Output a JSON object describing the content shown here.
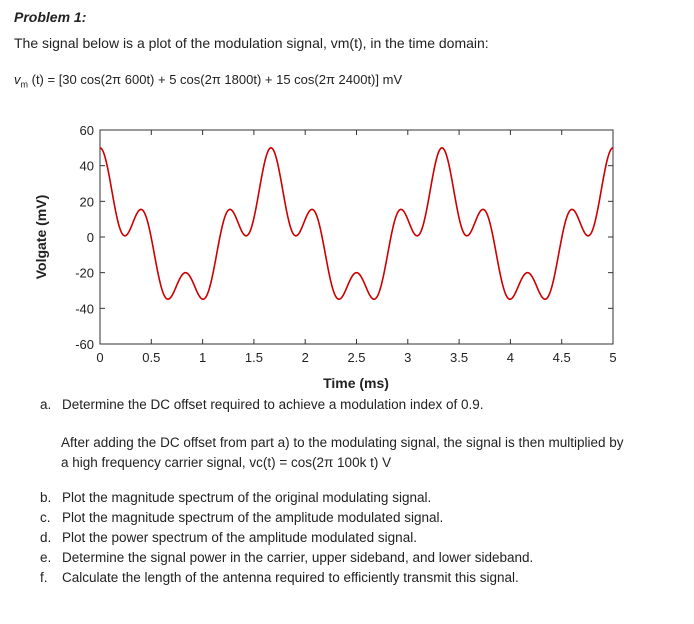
{
  "document": {
    "heading": "Problem 1:",
    "intro": "The signal below is a plot of the modulation signal, vm(t), in the time domain:",
    "equation": {
      "lhs_v": "v",
      "lhs_sub": "m",
      "lhs_rest": " (t) = [30 cos(2π 600t) + 5 cos(2π 1800t) + 15 cos(2π 2400t)] mV"
    },
    "question_a": {
      "label": "a.",
      "text": "Determine the DC offset required to achieve a modulation index of 0.9."
    },
    "paragraph_line1": "After adding the DC offset from part a) to the modulating signal, the signal is then multiplied by",
    "paragraph_line2": "a high frequency carrier signal, vc(t) = cos(2π 100k t) V",
    "questions": [
      {
        "label": "b.",
        "text": "Plot the magnitude spectrum of the original modulating signal."
      },
      {
        "label": "c.",
        "text": "Plot the magnitude spectrum of the amplitude modulated signal."
      },
      {
        "label": "d.",
        "text": "Plot the power spectrum of the amplitude modulated signal."
      },
      {
        "label": "e.",
        "text": "Determine the signal power in the carrier, upper sideband, and lower sideband."
      },
      {
        "label": "f.",
        "text": "Calculate the length of the antenna required to efficiently transmit this signal."
      }
    ]
  },
  "chart_data": {
    "type": "line",
    "xlabel": "Time (ms)",
    "ylabel": "Volgate (mV)",
    "xlim": [
      0,
      5
    ],
    "ylim": [
      -60,
      60
    ],
    "x_ticks": [
      "0",
      "0.5",
      "1",
      "1.5",
      "2",
      "2.5",
      "3",
      "3.5",
      "4",
      "4.5",
      "5"
    ],
    "y_ticks": [
      "60",
      "40",
      "20",
      "0",
      "-20",
      "-40",
      "-60"
    ],
    "grid": false,
    "line_color": "#cc0000",
    "series": [
      {
        "components": [
          {
            "amplitude_mV": 30,
            "frequency_Hz": 600
          },
          {
            "amplitude_mV": 5,
            "frequency_Hz": 1800
          },
          {
            "amplitude_mV": 15,
            "frequency_Hz": 2400
          }
        ]
      }
    ]
  }
}
